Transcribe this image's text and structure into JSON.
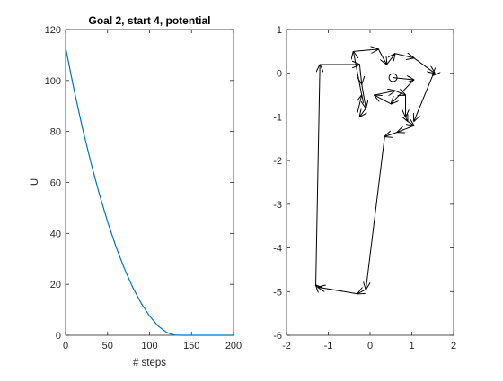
{
  "figure": {
    "background": "#ffffff",
    "axis_color": "#262626"
  },
  "chart_data": [
    {
      "type": "line",
      "title": "Goal 2, start 4, potential",
      "xlabel": "# steps",
      "ylabel": "U",
      "xlim": [
        0,
        200
      ],
      "ylim": [
        0,
        120
      ],
      "xticks": [
        "0",
        "50",
        "100",
        "150",
        "200"
      ],
      "yticks": [
        "0",
        "20",
        "40",
        "60",
        "80",
        "100",
        "120"
      ],
      "grid": false,
      "series": [
        {
          "color": "#0072BD",
          "x": [
            0,
            10,
            20,
            30,
            40,
            50,
            60,
            70,
            80,
            90,
            100,
            110,
            120,
            125,
            130,
            140,
            150,
            160,
            170,
            180,
            190,
            200
          ],
          "y": [
            113,
            96.5,
            81.5,
            68,
            55.7,
            44.6,
            34.8,
            26.2,
            18.8,
            12.6,
            7.6,
            3.7,
            1.2,
            0.5,
            0.1,
            0,
            0,
            0,
            0,
            0,
            0,
            0
          ]
        }
      ]
    },
    {
      "type": "line",
      "title": "",
      "xlabel": "",
      "ylabel": "",
      "xlim": [
        -2,
        2
      ],
      "ylim": [
        -6,
        1
      ],
      "xticks": [
        "-2",
        "-1",
        "0",
        "1",
        "2"
      ],
      "yticks": [
        "-6",
        "-5",
        "-4",
        "-3",
        "-2",
        "-1",
        "0",
        "1"
      ],
      "grid": false,
      "start_marker": {
        "x": 0.55,
        "y": -0.1,
        "shape": "circle"
      },
      "series": [
        {
          "color": "#000000",
          "arrows": true,
          "x": [
            0.55,
            1.05,
            0.5,
            0.1,
            0.1,
            0.6,
            0.85,
            0.85,
            0.9,
            1.05,
            0.65,
            0.35,
            -0.1,
            -0.3,
            -0.3,
            -1.25,
            -1.3,
            -1.2,
            -0.25,
            -0.2,
            -0.1,
            -0.25
          ],
          "y": [
            -0.1,
            -0.15,
            -0.7,
            -0.5,
            -0.5,
            -0.4,
            -0.5,
            -1.0,
            -1.1,
            -1.2,
            -1.35,
            -1.45,
            -4.95,
            -5.05,
            -5.05,
            -4.9,
            -4.85,
            0.2,
            0.2,
            -0.25,
            -0.8,
            -1.0
          ]
        },
        {
          "color": "#000000",
          "arrows": true,
          "x": [
            -0.3,
            -0.2,
            -0.4,
            0.2,
            0.4,
            0.6,
            1.05,
            1.55,
            1.5,
            1.05
          ],
          "y": [
            -0.9,
            -0.5,
            0.5,
            0.55,
            0.2,
            0.45,
            0.35,
            0.0,
            -0.05,
            -1.1
          ]
        }
      ]
    }
  ]
}
